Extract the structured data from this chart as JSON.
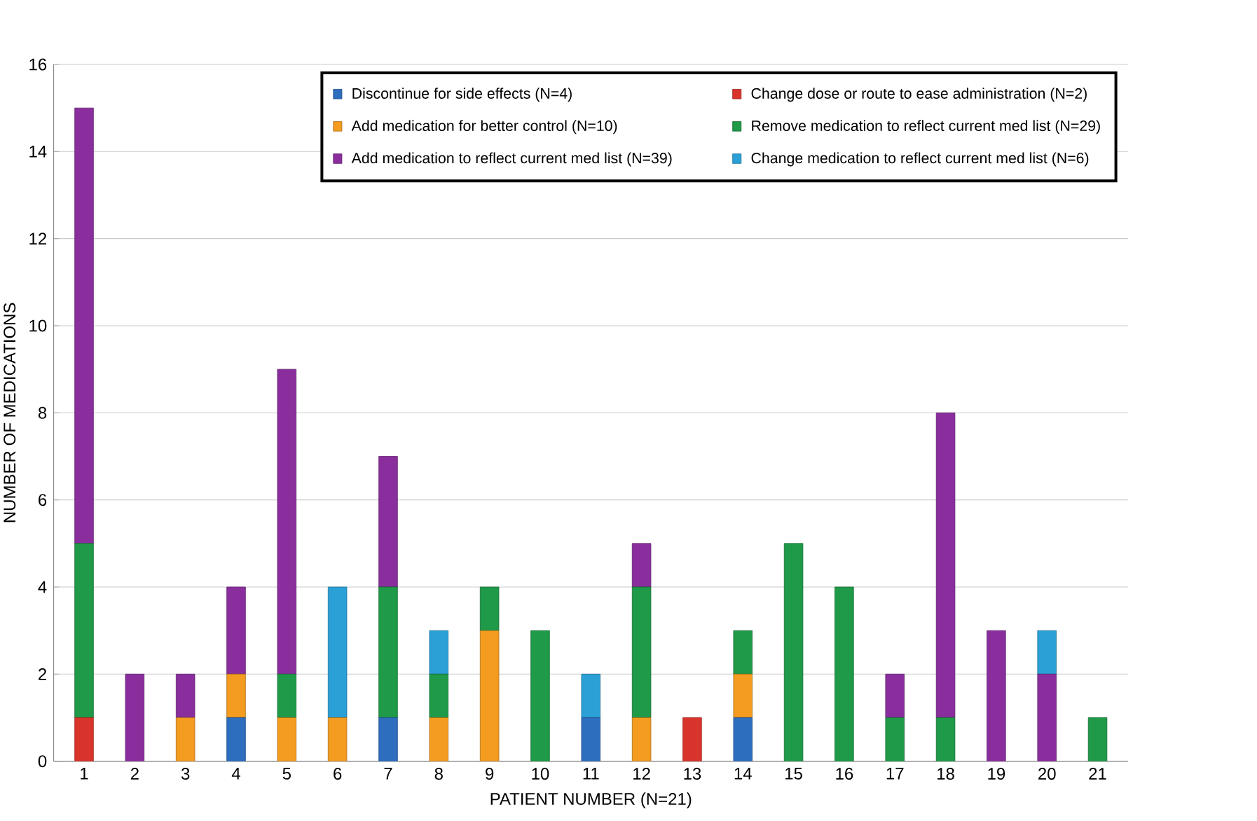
{
  "chart_data": {
    "type": "bar",
    "stacked": true,
    "xlabel": "PATIENT NUMBER (N=21)",
    "ylabel": "NUMBER OF MEDICATIONS",
    "categories": [
      "1",
      "2",
      "3",
      "4",
      "5",
      "6",
      "7",
      "8",
      "9",
      "10",
      "11",
      "12",
      "13",
      "14",
      "15",
      "16",
      "17",
      "18",
      "19",
      "20",
      "21"
    ],
    "ylim": [
      0,
      16
    ],
    "yticks": [
      0,
      2,
      4,
      6,
      8,
      10,
      12,
      14,
      16
    ],
    "grid": "y",
    "legend": "top right",
    "series": [
      {
        "name": "Discontinue for side effects (N=4)",
        "color": "#2e6ebf",
        "values": [
          0,
          0,
          0,
          1,
          0,
          0,
          1,
          0,
          0,
          0,
          1,
          0,
          0,
          1,
          0,
          0,
          0,
          0,
          0,
          0,
          0
        ]
      },
      {
        "name": "Change dose or route to ease administration (N=2)",
        "color": "#d9342b",
        "values": [
          1,
          0,
          0,
          0,
          0,
          0,
          0,
          0,
          0,
          0,
          0,
          0,
          1,
          0,
          0,
          0,
          0,
          0,
          0,
          0,
          0
        ]
      },
      {
        "name": "Add medication for better control (N=10)",
        "color": "#f39c1f",
        "values": [
          0,
          0,
          1,
          1,
          1,
          1,
          0,
          1,
          3,
          0,
          0,
          1,
          0,
          1,
          0,
          0,
          0,
          0,
          0,
          0,
          0
        ]
      },
      {
        "name": "Remove medication to reflect current med list (N=29)",
        "color": "#1e9a48",
        "values": [
          4,
          0,
          0,
          0,
          1,
          0,
          3,
          1,
          1,
          3,
          0,
          3,
          0,
          1,
          5,
          4,
          1,
          1,
          0,
          0,
          1
        ]
      },
      {
        "name": "Add medication to reflect current med list (N=39)",
        "color": "#8a2e9e",
        "values": [
          10,
          2,
          1,
          2,
          7,
          0,
          3,
          0,
          0,
          0,
          0,
          1,
          0,
          0,
          0,
          0,
          1,
          7,
          3,
          2,
          0
        ]
      },
      {
        "name": "Change medication to reflect current med list (N=6)",
        "color": "#2aa0d6",
        "values": [
          0,
          0,
          0,
          0,
          0,
          3,
          0,
          1,
          0,
          0,
          1,
          0,
          0,
          0,
          0,
          0,
          0,
          0,
          0,
          1,
          0
        ]
      }
    ]
  }
}
